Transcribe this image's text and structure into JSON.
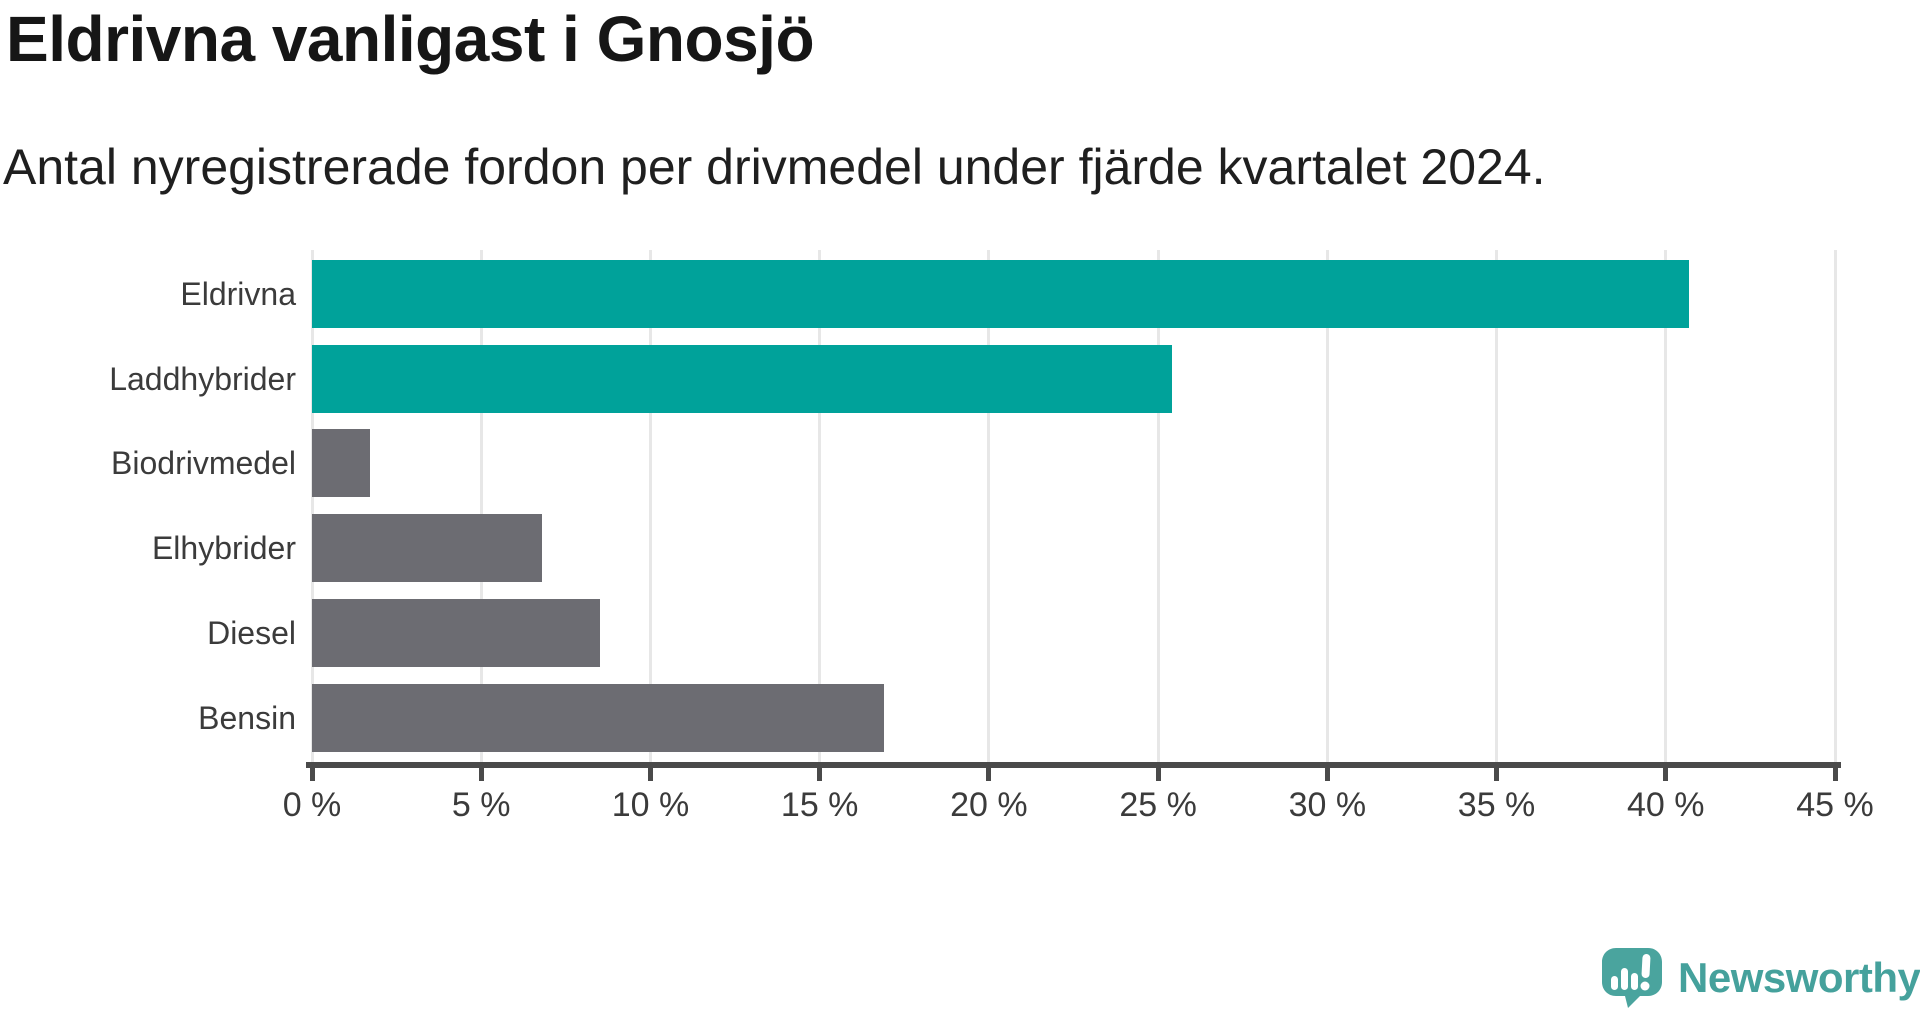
{
  "header": {
    "title": "Eldrivna vanligast i Gnosjö",
    "subtitle": "Antal nyregistrerade fordon per drivmedel under fjärde kvartalet 2024."
  },
  "chart_data": {
    "type": "bar",
    "orientation": "horizontal",
    "title": "Eldrivna vanligast i Gnosjö",
    "subtitle": "Antal nyregistrerade fordon per drivmedel under fjärde kvartalet 2024.",
    "categories": [
      "Eldrivna",
      "Laddhybrider",
      "Biodrivmedel",
      "Elhybrider",
      "Diesel",
      "Bensin"
    ],
    "values": [
      40.7,
      25.4,
      1.7,
      6.8,
      8.5,
      16.9
    ],
    "unit": "%",
    "xlim": [
      0,
      45
    ],
    "x_ticks": [
      0,
      5,
      10,
      15,
      20,
      25,
      30,
      35,
      40,
      45
    ],
    "x_tick_suffix": " %",
    "grid": true,
    "highlight_color": "#00a29a",
    "default_color": "#6c6c72",
    "bar_color_roles": [
      "highlight",
      "highlight",
      "default",
      "default",
      "default",
      "default"
    ],
    "gridline_color": "#e7e7e7",
    "axis_color": "#4a4a4a",
    "label_color": "#3b3b3b"
  },
  "branding": {
    "logo_text": "Newsworthy",
    "logo_color": "#45a19c",
    "logo_icon": "newsworthy-bubble-chart-icon",
    "logo_icon_color": "#4aa49e"
  }
}
